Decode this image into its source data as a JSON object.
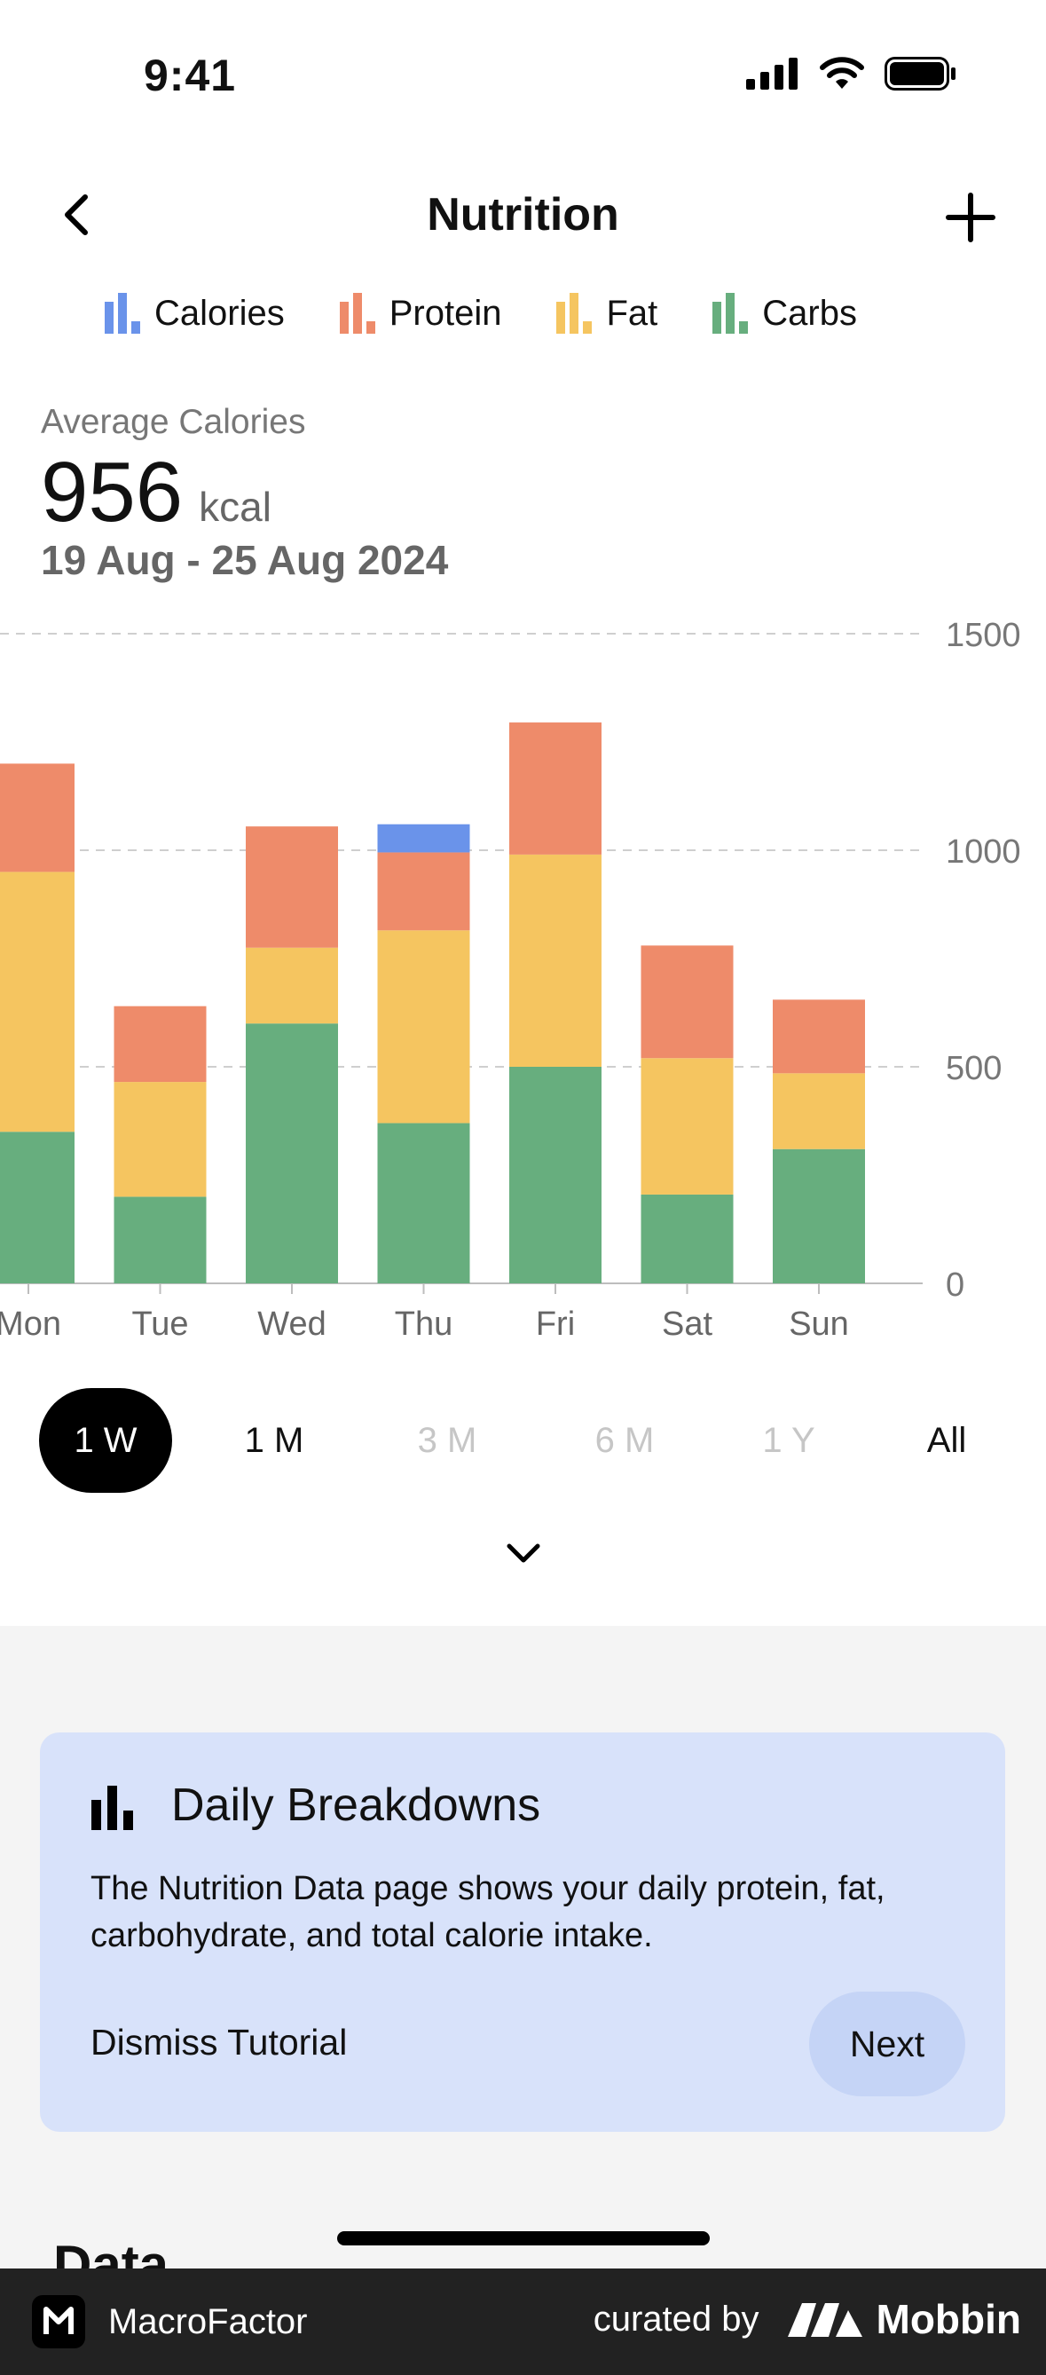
{
  "status_bar": {
    "time": "9:41"
  },
  "header": {
    "title": "Nutrition"
  },
  "legend": [
    {
      "label": "Calories",
      "color": "#6a93ea"
    },
    {
      "label": "Protein",
      "color": "#ee8b6a"
    },
    {
      "label": "Fat",
      "color": "#f5c560"
    },
    {
      "label": "Carbs",
      "color": "#67ae7e"
    }
  ],
  "summary": {
    "label": "Average Calories",
    "value": "956",
    "unit": "kcal",
    "date_range": "19 Aug - 25 Aug 2024"
  },
  "chart_data": {
    "type": "bar",
    "stacked": true,
    "categories": [
      "Mon",
      "Tue",
      "Wed",
      "Thu",
      "Fri",
      "Sat",
      "Sun"
    ],
    "series": [
      {
        "name": "Carbs",
        "color": "#67ae7e",
        "values": [
          350,
          200,
          600,
          370,
          500,
          205,
          310
        ]
      },
      {
        "name": "Fat",
        "color": "#f5c560",
        "values": [
          600,
          265,
          175,
          445,
          490,
          315,
          175
        ]
      },
      {
        "name": "Protein",
        "color": "#ee8b6a",
        "values": [
          250,
          175,
          280,
          180,
          305,
          260,
          170
        ]
      },
      {
        "name": "Calories",
        "color": "#6a93ea",
        "values": [
          0,
          0,
          0,
          65,
          0,
          0,
          0
        ]
      }
    ],
    "yticks": [
      0,
      500,
      1000,
      1500
    ],
    "ylim": [
      0,
      1500
    ],
    "grid": true,
    "axis_side": "right"
  },
  "range_tabs": [
    {
      "label": "1 W",
      "state": "active"
    },
    {
      "label": "1 M",
      "state": "enabled"
    },
    {
      "label": "3 M",
      "state": "disabled"
    },
    {
      "label": "6 M",
      "state": "disabled"
    },
    {
      "label": "1 Y",
      "state": "disabled"
    },
    {
      "label": "All",
      "state": "enabled"
    }
  ],
  "tutorial": {
    "title": "Daily Breakdowns",
    "text": "The Nutrition Data page shows your daily protein, fat, carbohydrate, and total calorie intake.",
    "dismiss_label": "Dismiss Tutorial",
    "next_label": "Next"
  },
  "data_section": {
    "title": "Data"
  },
  "footer": {
    "app_name": "MacroFactor",
    "curated_by": "curated by",
    "brand": "Mobbin"
  }
}
